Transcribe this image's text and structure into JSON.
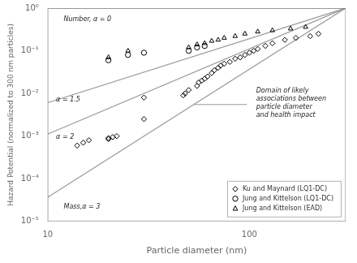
{
  "chart_data": {
    "type": "scatter",
    "xlabel": "Particle diameter (nm)",
    "ylabel": "Hazard Potential (normalized to 300 nm particles)",
    "log": true,
    "xlim": [
      10,
      300
    ],
    "ylim": [
      1e-05,
      1
    ],
    "xticks": [
      10,
      100
    ],
    "yticks": [
      {
        "value": 1e-05,
        "label": "10⁻⁵"
      },
      {
        "value": 0.0001,
        "label": "10⁻⁴"
      },
      {
        "value": 0.001,
        "label": "10⁻³"
      },
      {
        "value": 0.01,
        "label": "10⁻²"
      },
      {
        "value": 0.1,
        "label": "10⁻¹"
      },
      {
        "value": 1,
        "label": "10⁰"
      }
    ],
    "grid": false,
    "legend": "lower right",
    "series": [
      {
        "type": "line",
        "color": "#999999",
        "x": [
          10,
          300
        ],
        "values": [
          1,
          1
        ]
      },
      {
        "type": "line",
        "color": "#999999",
        "x": [
          10,
          300
        ],
        "values": [
          0.0060858062,
          1
        ]
      },
      {
        "type": "line",
        "color": "#999999",
        "x": [
          10,
          300
        ],
        "values": [
          0.0011111111,
          1
        ]
      },
      {
        "type": "line",
        "color": "#999999",
        "x": [
          10,
          300
        ],
        "values": [
          3.7037037e-05,
          1
        ]
      },
      {
        "type": "line",
        "color": "#999999",
        "x": [
          97,
          53
        ],
        "values": [
          0.0055,
          0.0055
        ]
      },
      {
        "type": "scatter",
        "name": "Ku and Maynard (LQ1-DC)",
        "color": "#000000",
        "marker": "diamond",
        "x": [
          14,
          15,
          16,
          20,
          20,
          21,
          22,
          30,
          30,
          47,
          48,
          50,
          55,
          56,
          58,
          60,
          62,
          65,
          67,
          70,
          72,
          75,
          80,
          85,
          90,
          95,
          100,
          105,
          110,
          120,
          130,
          150,
          170,
          200,
          220
        ],
        "values": [
          0.0006,
          0.0007,
          0.0008,
          0.00085,
          0.0009,
          0.00095,
          0.001,
          0.0025,
          0.008,
          0.009,
          0.01,
          0.012,
          0.015,
          0.018,
          0.02,
          0.022,
          0.025,
          0.03,
          0.035,
          0.04,
          0.045,
          0.05,
          0.055,
          0.065,
          0.07,
          0.08,
          0.09,
          0.1,
          0.11,
          0.13,
          0.15,
          0.18,
          0.2,
          0.22,
          0.25
        ]
      },
      {
        "type": "scatter",
        "name": "Jung and Kittelson (LQ1-DC)",
        "color": "#000000",
        "marker": "circle",
        "x": [
          20,
          25,
          30,
          50,
          55,
          60
        ],
        "values": [
          0.06,
          0.08,
          0.09,
          0.1,
          0.12,
          0.13
        ]
      },
      {
        "type": "scatter",
        "name": "Jung and Kittelson (EAD)",
        "color": "#000000",
        "marker": "triangle",
        "x": [
          20,
          25,
          50,
          55,
          60,
          65,
          70,
          75,
          85,
          95,
          110,
          130,
          160,
          190
        ],
        "values": [
          0.07,
          0.1,
          0.12,
          0.14,
          0.15,
          0.17,
          0.18,
          0.2,
          0.22,
          0.25,
          0.28,
          0.3,
          0.33,
          0.36
        ]
      }
    ],
    "annotations": [
      {
        "text": "Number, α = 0",
        "x": 12,
        "y": 0.55
      },
      {
        "text": "α = 1.5",
        "x": 11,
        "y": 0.007
      },
      {
        "text": "α = 2",
        "x": 11,
        "y": 0.00095
      },
      {
        "text": "Mass,α = 3",
        "x": 12,
        "y": 2.2e-05
      },
      {
        "text": "Domain of likely\nassociations between\nparticle diameter\nand health impact",
        "x": 108,
        "y": 0.006
      }
    ]
  }
}
